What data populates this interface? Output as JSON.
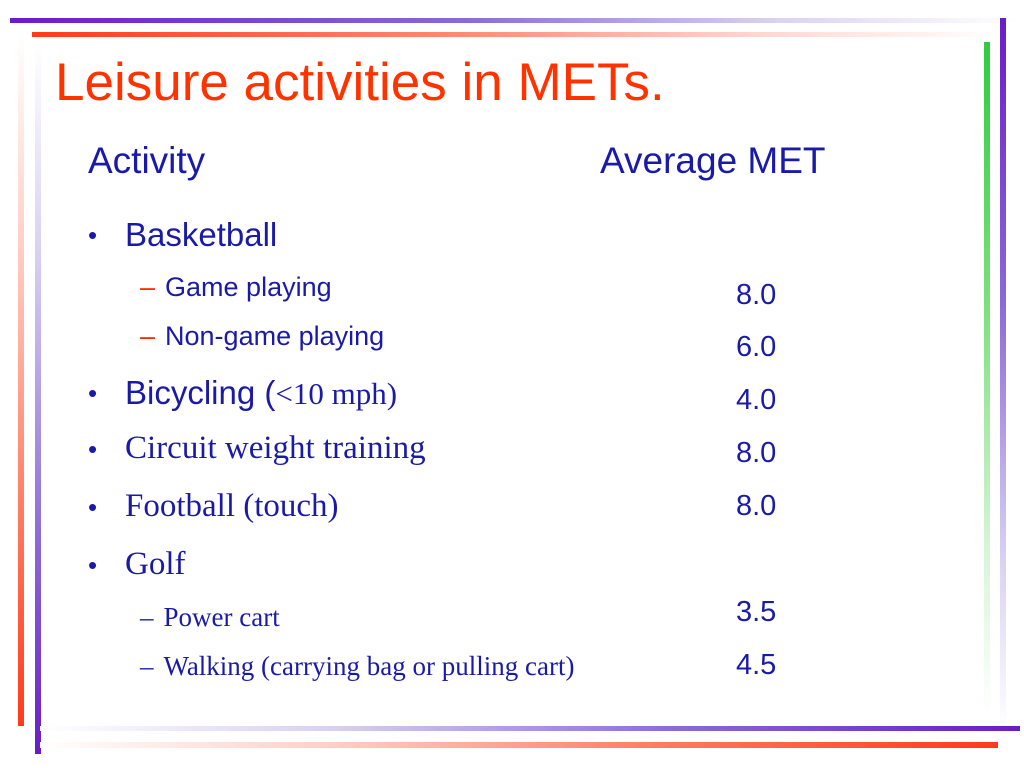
{
  "slide": {
    "title": "Leisure activities in METs.",
    "header_activity": "Activity",
    "header_met": "Average MET",
    "bullet_char": "•",
    "dash_char": "–",
    "items": {
      "basketball": "Basketball",
      "game_playing": "Game playing",
      "non_game_playing": "Non-game playing",
      "bicycling_prefix": "Bicycling (",
      "bicycling_suffix": "<10 mph)",
      "circuit": "Circuit weight training",
      "football": "Football (touch)",
      "golf": "Golf",
      "power_cart": "Power cart",
      "walking": "Walking (carrying bag or pulling cart)"
    },
    "mets": {
      "game_playing": "8.0",
      "non_game_playing": "6.0",
      "bicycling": "4.0",
      "circuit": "8.0",
      "football": "8.0",
      "power_cart": "3.5",
      "walking": "4.5"
    }
  },
  "colors": {
    "title": "#ff3300",
    "text": "#1a1aa8",
    "accent_red": "#ff3a1a",
    "accent_purple": "#6a1bc8",
    "accent_green": "#2ecc40"
  }
}
